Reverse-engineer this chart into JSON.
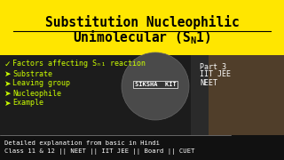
{
  "title_line1": "Substitution Nucleophilic",
  "title_line2": "Unimolecular (S",
  "title_line2_sub": "N",
  "title_line2_end": "1)",
  "title_bg": "#FFE600",
  "title_color": "#000000",
  "body_bg": "#1a1a1a",
  "body_text_color": "#CCFF00",
  "bullet_items": [
    "✓  Factors affecting Sₙ₁ reaction",
    "➤  Substrate",
    "➤  Leaving group",
    "➤  Nucleophile",
    "➤  Example"
  ],
  "part_text": "Part 3\nIIT JEE\nNEET",
  "part_color": "#FFFFFF",
  "logo_circle_color": "#555555",
  "logo_text": "SIKSHA  KIT",
  "footer_bg": "#111111",
  "footer_color": "#FFFFFF",
  "footer_line1": "Detailed explanation from basic in Hindi",
  "footer_line2": "Class 11 & 12 || NEET || IIT JEE || Board || CUET"
}
